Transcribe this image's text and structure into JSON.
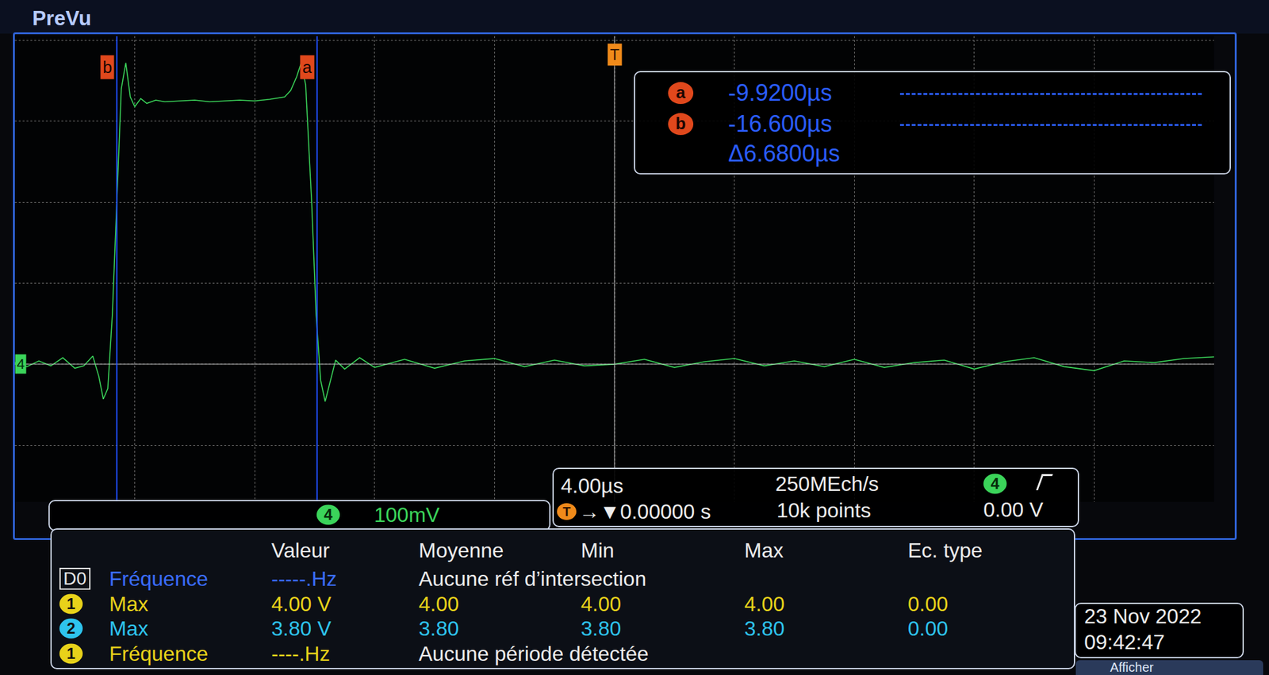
{
  "header": {
    "title": "PreVu"
  },
  "chart_data": {
    "type": "line",
    "x": [
      -20,
      -19.6,
      -19.2,
      -18.8,
      -18.4,
      -18.0,
      -17.7,
      -17.4,
      -17.2,
      -17.05,
      -16.9,
      -16.75,
      -16.6,
      -16.45,
      -16.3,
      -16.15,
      -16.0,
      -15.8,
      -15.6,
      -15.3,
      -15.0,
      -14.5,
      -14.0,
      -13.5,
      -13.0,
      -12.5,
      -12.0,
      -11.5,
      -11.0,
      -10.8,
      -10.6,
      -10.45,
      -10.3,
      -10.1,
      -9.95,
      -9.8,
      -9.65,
      -9.5,
      -9.3,
      -9.0,
      -8.5,
      -8.0,
      -7,
      -6,
      -5,
      -4,
      -3,
      -2,
      -1,
      0,
      1,
      2,
      3,
      4,
      5,
      6,
      7,
      8,
      9,
      10,
      11,
      12,
      13,
      14,
      15,
      16,
      17,
      18,
      19,
      20
    ],
    "series": [
      {
        "color": "#3bd45a",
        "values": [
          2,
          -3,
          4,
          -2,
          8,
          -5,
          -2,
          10,
          -15,
          -43,
          -30,
          60,
          200,
          340,
          372,
          330,
          318,
          328,
          322,
          326,
          324,
          325,
          326,
          324,
          325,
          326,
          325,
          327,
          330,
          338,
          355,
          372,
          345,
          200,
          60,
          -20,
          -46,
          -25,
          5,
          -6,
          8,
          -4,
          6,
          -5,
          4,
          7,
          -3,
          5,
          -2,
          0,
          6,
          -4,
          3,
          7,
          -2,
          4,
          -3,
          6,
          -4,
          2,
          5,
          -6,
          3,
          8,
          -3,
          -8,
          4,
          2,
          7,
          9
        ]
      }
    ],
    "xlim": [
      -20,
      20
    ],
    "xticks": [
      -20,
      -16,
      -12,
      -8,
      -4,
      0,
      4,
      8,
      12,
      16,
      20
    ],
    "ylim": [
      -170,
      405
    ],
    "yticks": [
      -100,
      0,
      100,
      200,
      300,
      400
    ],
    "grid": true,
    "tick_labels": false
  },
  "cursors": {
    "items": [
      {
        "label": "a",
        "x": -9.92,
        "readout": "-9.9200µs"
      },
      {
        "label": "b",
        "x": -16.6,
        "readout": "-16.600µs"
      }
    ],
    "delta": "Δ6.6800µs"
  },
  "trigger_marker": {
    "label": "T",
    "x": 0
  },
  "channel_marker": {
    "label": "4",
    "y": 0
  },
  "channel_box": {
    "channel": "4",
    "scale": "100mV"
  },
  "timebase": {
    "scale": "4.00µs",
    "position_icon": "T",
    "position": "→▼0.00000 s",
    "sample_rate": "250MEch/s",
    "record": "10k points",
    "trigger_channel": "4",
    "trigger_level": "0.00 V"
  },
  "measurements": {
    "headers": [
      "Valeur",
      "Moyenne",
      "Min",
      "Max",
      "Ec. type"
    ],
    "rows": [
      {
        "source": "D0",
        "name": "Fréquence",
        "value": "-----.Hz",
        "note": "Aucune réf d’intersection"
      },
      {
        "source": "1",
        "name": "Max",
        "value": "4.00 V",
        "stats": [
          "4.00",
          "4.00",
          "4.00",
          "0.00"
        ]
      },
      {
        "source": "2",
        "name": "Max",
        "value": "3.80 V",
        "stats": [
          "3.80",
          "3.80",
          "3.80",
          "0.00"
        ]
      },
      {
        "source": "1",
        "name": "Fréquence",
        "value": "----.Hz",
        "note": "Aucune période détectée"
      }
    ]
  },
  "date": {
    "date": "23 Nov 2022",
    "time": "09:42:47"
  },
  "button": "Afficher"
}
